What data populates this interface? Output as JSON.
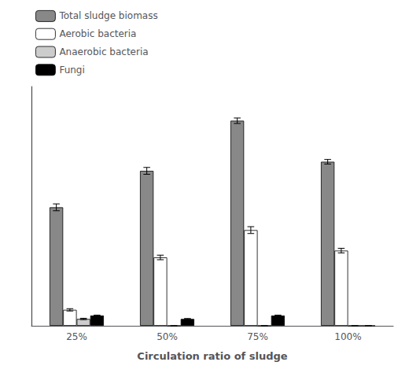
{
  "chart_data": {
    "type": "bar",
    "xlabel": "Circulation ratio of sludge",
    "categories": [
      "25%",
      "50%",
      "75%",
      "100%"
    ],
    "series": [
      {
        "name": "Total sludge biomass",
        "color": "#888888",
        "values": [
          52,
          68,
          90,
          72
        ],
        "errors": [
          1.5,
          1.5,
          1.2,
          1.0
        ]
      },
      {
        "name": "Aerobic bacteria",
        "color": "#ffffff",
        "values": [
          7,
          30,
          42,
          33
        ],
        "errors": [
          0.5,
          1.0,
          1.5,
          1.0
        ]
      },
      {
        "name": "Anaerobic bacteria",
        "color": "#cccccc",
        "values": [
          3,
          0,
          0,
          0
        ],
        "errors": [
          0.3,
          0,
          0,
          0
        ]
      },
      {
        "name": "Fungi",
        "color": "#000000",
        "values": [
          4.5,
          3.0,
          4.5,
          0
        ],
        "errors": [
          0.2,
          0.2,
          0.2,
          0
        ]
      }
    ],
    "ylim": [
      0,
      105
    ],
    "yticks": [],
    "grid": false,
    "legend": "upper left",
    "tick_labels": "x"
  }
}
